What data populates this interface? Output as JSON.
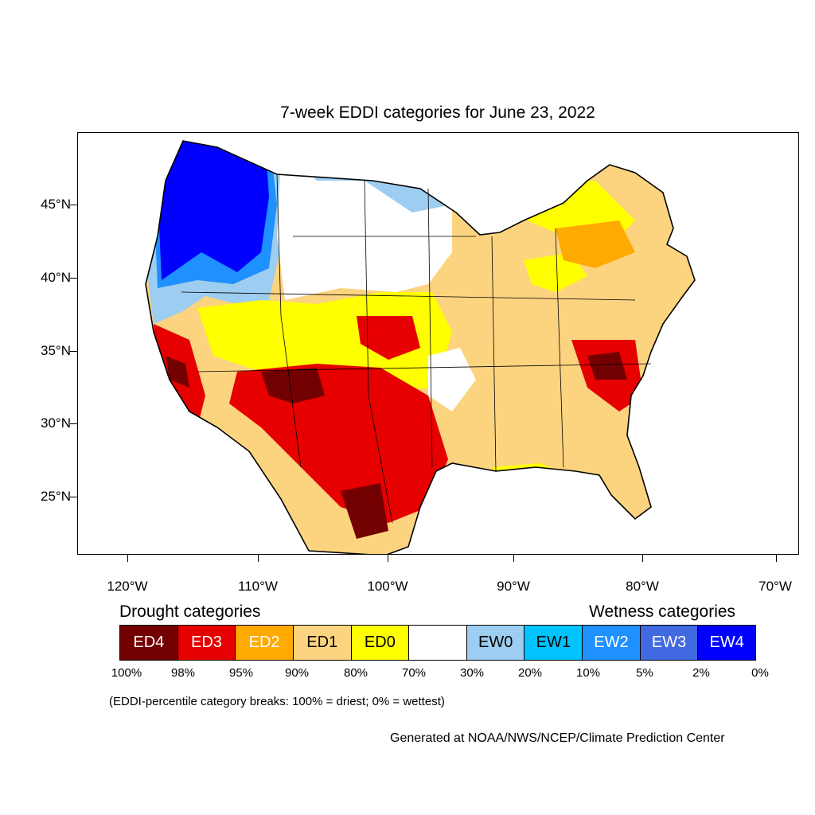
{
  "title": "7-week EDDI categories for June 23, 2022",
  "lat_labels": [
    "45°N",
    "40°N",
    "35°N",
    "30°N",
    "25°N"
  ],
  "lon_labels": [
    "120°W",
    "110°W",
    "100°W",
    "90°W",
    "80°W",
    "70°W"
  ],
  "legend": {
    "drought_heading": "Drought categories",
    "wetness_heading": "Wetness categories",
    "categories": [
      {
        "label": "ED4",
        "color": "#730000",
        "text_color": "#ffffff"
      },
      {
        "label": "ED3",
        "color": "#e60000",
        "text_color": "#ffffff"
      },
      {
        "label": "ED2",
        "color": "#ffaa00",
        "text_color": "#ffffff"
      },
      {
        "label": "ED1",
        "color": "#fcd37f",
        "text_color": "#000000"
      },
      {
        "label": "ED0",
        "color": "#ffff00",
        "text_color": "#000000"
      },
      {
        "label": "",
        "color": "#ffffff",
        "text_color": "#000000"
      },
      {
        "label": "EW0",
        "color": "#9dcdf0",
        "text_color": "#000000"
      },
      {
        "label": "EW1",
        "color": "#00c3ff",
        "text_color": "#000000"
      },
      {
        "label": "EW2",
        "color": "#1e90ff",
        "text_color": "#ffffff"
      },
      {
        "label": "EW3",
        "color": "#4169e1",
        "text_color": "#ffffff"
      },
      {
        "label": "EW4",
        "color": "#0000ff",
        "text_color": "#ffffff"
      }
    ],
    "percent_breaks": [
      "100%",
      "98%",
      "95%",
      "90%",
      "80%",
      "70%",
      "30%",
      "20%",
      "10%",
      "5%",
      "2%",
      "0%"
    ]
  },
  "note": "(EDDI-percentile category breaks: 100% = driest; 0% = wettest)",
  "credit": "Generated at NOAA/NWS/NCEP/Climate Prediction Center"
}
